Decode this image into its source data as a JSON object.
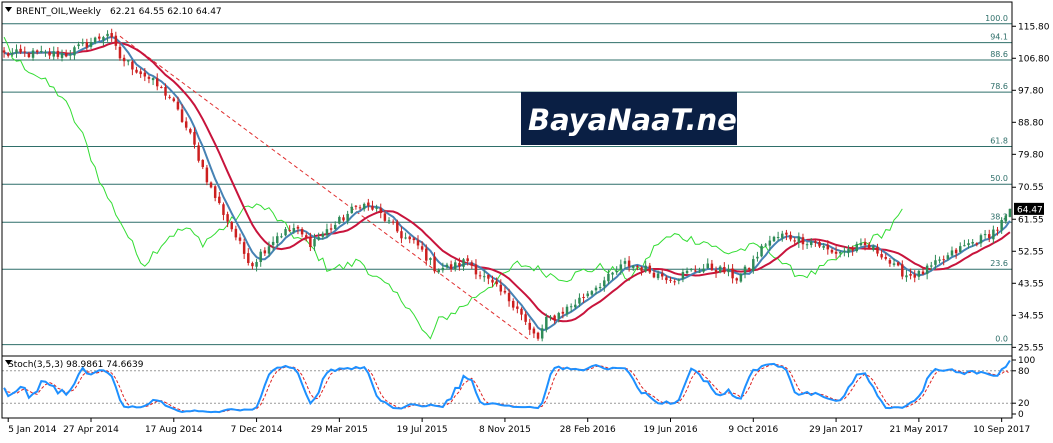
{
  "header": {
    "symbol_label": "BRENT_OIL,Weekly",
    "ohlc_label": "62.21 64.55 62.10 64.47"
  },
  "watermark": {
    "text": "BayaNaaT.net"
  },
  "stoch_header": {
    "label": "Stoch(3,5,3) 98.9861 74.6639"
  },
  "last_price_label": "64.47",
  "colors": {
    "grid_line": "#2f6f6a",
    "bull": "#2e8b57",
    "bear": "#cc1f1f",
    "fast_ma": "#4682b4",
    "slow_ma": "#c8143c",
    "lagging": "#33dd33",
    "trend_dashed": "#e03030",
    "stoch_main": "#1e90ff",
    "stoch_signal": "#dd2222",
    "watermark_bg": "#0a1f44",
    "last_price_bg": "#000000"
  },
  "chart_data": [
    {
      "type": "candlestick",
      "title": "BRENT_OIL,Weekly",
      "x_ticks": [
        "5 Jan 2014",
        "27 Apr 2014",
        "17 Aug 2014",
        "7 Dec 2014",
        "29 Mar 2015",
        "19 Jul 2015",
        "8 Nov 2015",
        "28 Feb 2016",
        "19 Jun 2016",
        "9 Oct 2016",
        "29 Jan 2017",
        "21 May 2017",
        "10 Sep 2017"
      ],
      "y_ticks": [
        115.8,
        106.8,
        97.8,
        88.8,
        79.8,
        70.55,
        61.55,
        52.55,
        43.55,
        34.55,
        25.55
      ],
      "ylim": [
        24.8,
        118.4
      ],
      "fib_levels": [
        {
          "label": "100.0",
          "price": 116.5
        },
        {
          "label": "94.1",
          "price": 111.2
        },
        {
          "label": "88.6",
          "price": 106.3
        },
        {
          "label": "78.6",
          "price": 97.3
        },
        {
          "label": "61.8",
          "price": 82.0
        },
        {
          "label": "50.0",
          "price": 71.4
        },
        {
          "label": "38.2",
          "price": 60.7
        },
        {
          "label": "23.6",
          "price": 47.5
        },
        {
          "label": "0.0",
          "price": 26.3
        }
      ],
      "last_close": 64.47,
      "anchors": [
        [
          0,
          108
        ],
        [
          15,
          108
        ],
        [
          22,
          112
        ],
        [
          25,
          114
        ],
        [
          28,
          107
        ],
        [
          34,
          102
        ],
        [
          40,
          96
        ],
        [
          45,
          85
        ],
        [
          50,
          70
        ],
        [
          55,
          59
        ],
        [
          58,
          52
        ],
        [
          60,
          49
        ],
        [
          62,
          52
        ],
        [
          66,
          57
        ],
        [
          70,
          59
        ],
        [
          74,
          55
        ],
        [
          80,
          60
        ],
        [
          86,
          66
        ],
        [
          90,
          64
        ],
        [
          96,
          57
        ],
        [
          100,
          54
        ],
        [
          104,
          48
        ],
        [
          108,
          48
        ],
        [
          112,
          50
        ],
        [
          115,
          46
        ],
        [
          118,
          43
        ],
        [
          121,
          40
        ],
        [
          124,
          37
        ],
        [
          127,
          30
        ],
        [
          129,
          28
        ],
        [
          131,
          33
        ],
        [
          134,
          35
        ],
        [
          138,
          38
        ],
        [
          142,
          42
        ],
        [
          146,
          45
        ],
        [
          150,
          49
        ],
        [
          154,
          48
        ],
        [
          158,
          46
        ],
        [
          162,
          45
        ],
        [
          166,
          47
        ],
        [
          170,
          48
        ],
        [
          174,
          47
        ],
        [
          177,
          45
        ],
        [
          180,
          48
        ],
        [
          184,
          55
        ],
        [
          188,
          57
        ],
        [
          192,
          56
        ],
        [
          196,
          55
        ],
        [
          200,
          52
        ],
        [
          204,
          53
        ],
        [
          208,
          54
        ],
        [
          212,
          52
        ],
        [
          215,
          48
        ],
        [
          218,
          46
        ],
        [
          221,
          46
        ],
        [
          224,
          48
        ],
        [
          228,
          51
        ],
        [
          232,
          54
        ],
        [
          236,
          56
        ],
        [
          240,
          59
        ],
        [
          242,
          62
        ],
        [
          243,
          64.47
        ]
      ],
      "series": [
        {
          "name": "",
          "role": "ma_fast",
          "period": 5
        },
        {
          "name": "",
          "role": "ma_slow",
          "period": 12
        },
        {
          "name": "",
          "role": "lagging",
          "shift": 26
        }
      ]
    },
    {
      "type": "line",
      "title": "Stoch(3,5,3) 98.9861 74.6639",
      "ylim": [
        0,
        100
      ],
      "y_ticks": [
        100,
        80,
        20,
        0
      ],
      "series": [
        {
          "name": "",
          "role": "main",
          "last": 98.9861
        },
        {
          "name": "",
          "role": "signal",
          "last": 74.6639
        }
      ]
    }
  ]
}
